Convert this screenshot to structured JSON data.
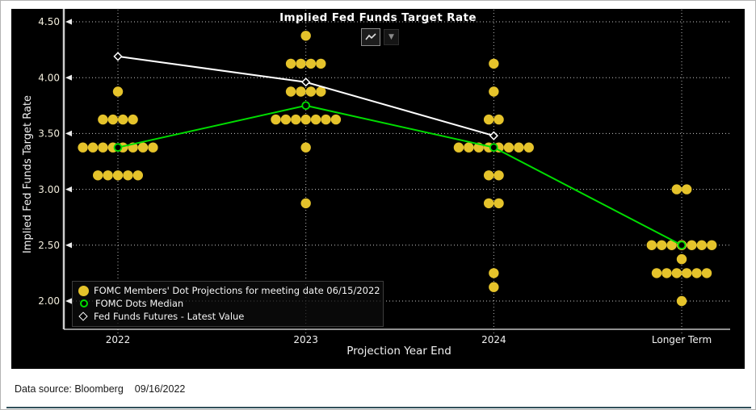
{
  "header": {
    "title": "Implied Fed Funds Target Rate"
  },
  "toolbar": {
    "chart_type_icon": "line-chart",
    "caret_glyph": "▼"
  },
  "axes": {
    "y_title": "Implied Fed Funds Target Rate",
    "x_title": "Projection Year End"
  },
  "legend": {
    "items": [
      {
        "marker": "yellow-dot",
        "label": "FOMC Members' Dot Projections for meeting date 06/15/2022"
      },
      {
        "marker": "green-ring",
        "label": "FOMC Dots Median"
      },
      {
        "marker": "white-diamond",
        "label": "Fed Funds Futures - Latest Value"
      }
    ]
  },
  "footer": {
    "source": "Data source: Bloomberg",
    "date": "09/16/2022"
  },
  "chart_data": {
    "type": "scatter",
    "title": "Implied Fed Funds Target Rate",
    "xlabel": "Projection Year End",
    "ylabel": "Implied Fed Funds Target Rate",
    "ylim": [
      1.75,
      4.55
    ],
    "grid": true,
    "legend_position": "lower-left",
    "categories": [
      "2022",
      "2023",
      "2024",
      "Longer Term"
    ],
    "yticks": [
      {
        "label": "4.50",
        "value": 4.5
      },
      {
        "label": "4.00",
        "value": 4.0
      },
      {
        "label": "3.50",
        "value": 3.5
      },
      {
        "label": "3.00",
        "value": 3.0
      },
      {
        "label": "2.50",
        "value": 2.5
      },
      {
        "label": "2.00",
        "value": 2.0
      }
    ],
    "dot_columns": [
      {
        "category": "2022",
        "dots": [
          {
            "value": 3.875,
            "count": 1
          },
          {
            "value": 3.625,
            "count": 4
          },
          {
            "value": 3.375,
            "count": 8
          },
          {
            "value": 3.125,
            "count": 5
          }
        ]
      },
      {
        "category": "2023",
        "dots": [
          {
            "value": 4.375,
            "count": 1
          },
          {
            "value": 4.125,
            "count": 4
          },
          {
            "value": 3.875,
            "count": 4
          },
          {
            "value": 3.625,
            "count": 7
          },
          {
            "value": 3.375,
            "count": 1
          },
          {
            "value": 2.875,
            "count": 1
          }
        ]
      },
      {
        "category": "2024",
        "dots": [
          {
            "value": 4.125,
            "count": 1
          },
          {
            "value": 3.875,
            "count": 1
          },
          {
            "value": 3.625,
            "count": 2
          },
          {
            "value": 3.375,
            "count": 8
          },
          {
            "value": 3.125,
            "count": 2
          },
          {
            "value": 2.875,
            "count": 2
          },
          {
            "value": 2.25,
            "count": 1
          },
          {
            "value": 2.125,
            "count": 1
          }
        ]
      },
      {
        "category": "Longer Term",
        "dots": [
          {
            "value": 3.0,
            "count": 2
          },
          {
            "value": 2.5,
            "count": 7
          },
          {
            "value": 2.375,
            "count": 1
          },
          {
            "value": 2.25,
            "count": 6
          },
          {
            "value": 2.0,
            "count": 1
          }
        ]
      }
    ],
    "series": [
      {
        "name": "FOMC Dots Median",
        "marker": "ring",
        "color": "#00dd00",
        "x": [
          "2022",
          "2023",
          "2024",
          "Longer Term"
        ],
        "values": [
          3.375,
          3.75,
          3.375,
          2.5
        ]
      },
      {
        "name": "Fed Funds Futures - Latest Value",
        "marker": "diamond",
        "color": "#ffffff",
        "x": [
          "2022",
          "2023",
          "2024"
        ],
        "values": [
          4.19,
          3.96,
          3.48
        ]
      }
    ],
    "colors": {
      "dots": "#e5c32b",
      "median_line": "#00dd00",
      "futures_line": "#ffffff",
      "panel_background": "#000000",
      "gridline": "#c9c9c9",
      "footer_rule": "#31505a"
    }
  }
}
